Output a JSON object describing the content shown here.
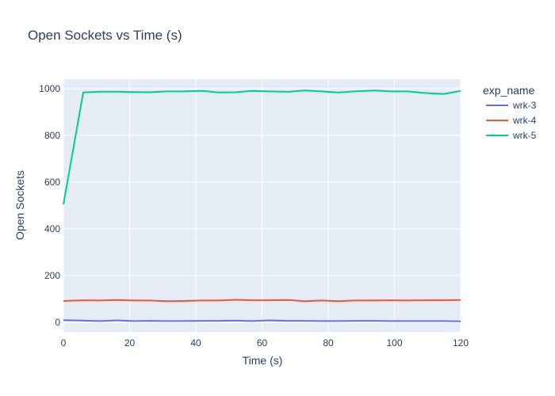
{
  "chart_data": {
    "type": "line",
    "title": "Open Sockets vs Time (s)",
    "xlabel": "Time (s)",
    "ylabel": "Open Sockets",
    "xlim": [
      0,
      120
    ],
    "ylim": [
      -40,
      1040
    ],
    "xticks": [
      0,
      20,
      40,
      60,
      80,
      100,
      120
    ],
    "yticks": [
      0,
      200,
      400,
      600,
      800,
      1000
    ],
    "legend_title": "exp_name",
    "legend_position": "right",
    "grid": true,
    "x": [
      0,
      6,
      11,
      16,
      21,
      26,
      31,
      36,
      42,
      47,
      52,
      57,
      62,
      68,
      73,
      78,
      83,
      88,
      94,
      99,
      104,
      109,
      115,
      120
    ],
    "series": [
      {
        "name": "wrk-3",
        "color": "#636efa",
        "values": [
          10,
          8,
          6,
          9,
          6,
          7,
          6,
          6,
          7,
          7,
          8,
          6,
          9,
          7,
          7,
          6,
          6,
          7,
          7,
          6,
          6,
          6,
          6,
          5
        ]
      },
      {
        "name": "wrk-4",
        "color": "#ef553b",
        "values": [
          92,
          95,
          94,
          96,
          94,
          94,
          91,
          92,
          94,
          94,
          97,
          95,
          95,
          96,
          91,
          94,
          91,
          94,
          94,
          95,
          94,
          95,
          95,
          96
        ]
      },
      {
        "name": "wrk-5",
        "color": "#00cc96",
        "values": [
          505,
          983,
          987,
          987,
          985,
          984,
          988,
          988,
          990,
          983,
          984,
          990,
          988,
          986,
          992,
          988,
          983,
          988,
          992,
          988,
          988,
          981,
          977,
          990
        ]
      }
    ]
  }
}
